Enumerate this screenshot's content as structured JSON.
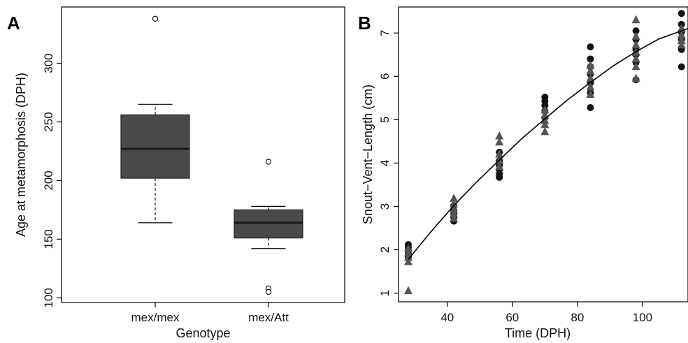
{
  "panels": {
    "a": {
      "letter": "A"
    },
    "b": {
      "letter": "B"
    }
  },
  "chart_data": [
    {
      "type": "box",
      "panel": "A",
      "xlabel": "Genotype",
      "ylabel": "Age at metamorphosis (DPH)",
      "categories": [
        "mex/mex",
        "mex/Att"
      ],
      "ylim": [
        96,
        348
      ],
      "yticks": [
        100,
        150,
        200,
        250,
        300
      ],
      "grid": false,
      "colors": {
        "box_fill": "#4a4a4a",
        "median": "#1a1a1a"
      },
      "boxes": [
        {
          "category": "mex/mex",
          "whisker_low": 164,
          "q1": 202,
          "median": 227,
          "q3": 256,
          "whisker_high": 265,
          "outliers": [
            338
          ]
        },
        {
          "category": "mex/Att",
          "whisker_low": 142,
          "q1": 151,
          "median": 164,
          "q3": 175,
          "whisker_high": 178,
          "outliers": [
            216,
            108,
            105
          ]
        }
      ]
    },
    {
      "type": "scatter",
      "panel": "B",
      "xlabel": "Time (DPH)",
      "ylabel": "Snout−Vent−Length (cm)",
      "xlim": [
        25,
        114
      ],
      "ylim": [
        0.8,
        7.6
      ],
      "xticks": [
        40,
        60,
        80,
        100
      ],
      "yticks": [
        1,
        2,
        3,
        4,
        5,
        6,
        7
      ],
      "grid": false,
      "colors": {
        "circle": "#111111",
        "triangle": "#555555",
        "curve": "#000000"
      },
      "series": [
        {
          "marker": "circle",
          "points": [
            [
              28,
              2.12
            ],
            [
              28,
              2.05
            ],
            [
              28,
              1.98
            ],
            [
              28,
              1.9
            ],
            [
              28,
              1.83
            ],
            [
              42,
              3.02
            ],
            [
              42,
              2.9
            ],
            [
              42,
              2.82
            ],
            [
              42,
              2.75
            ],
            [
              42,
              2.66
            ],
            [
              56,
              4.25
            ],
            [
              56,
              4.05
            ],
            [
              56,
              3.95
            ],
            [
              56,
              3.85
            ],
            [
              56,
              3.75
            ],
            [
              56,
              3.67
            ],
            [
              70,
              5.52
            ],
            [
              70,
              5.43
            ],
            [
              70,
              5.33
            ],
            [
              70,
              5.2
            ],
            [
              70,
              5.05
            ],
            [
              84,
              6.68
            ],
            [
              84,
              6.4
            ],
            [
              84,
              6.22
            ],
            [
              84,
              6.05
            ],
            [
              84,
              5.85
            ],
            [
              84,
              5.62
            ],
            [
              84,
              5.28
            ],
            [
              98,
              7.05
            ],
            [
              98,
              6.85
            ],
            [
              98,
              6.62
            ],
            [
              98,
              6.5
            ],
            [
              98,
              6.32
            ],
            [
              98,
              5.92
            ],
            [
              112,
              7.45
            ],
            [
              112,
              7.2
            ],
            [
              112,
              7.02
            ],
            [
              112,
              6.85
            ],
            [
              112,
              6.62
            ],
            [
              112,
              6.22
            ]
          ]
        },
        {
          "marker": "triangle",
          "points": [
            [
              28,
              2.02
            ],
            [
              28,
              1.92
            ],
            [
              28,
              1.82
            ],
            [
              28,
              1.72
            ],
            [
              28,
              1.05
            ],
            [
              42,
              3.18
            ],
            [
              42,
              3.05
            ],
            [
              42,
              2.92
            ],
            [
              42,
              2.82
            ],
            [
              42,
              2.72
            ],
            [
              56,
              4.62
            ],
            [
              56,
              4.48
            ],
            [
              56,
              4.2
            ],
            [
              56,
              4.05
            ],
            [
              56,
              3.92
            ],
            [
              70,
              5.22
            ],
            [
              70,
              5.1
            ],
            [
              70,
              4.98
            ],
            [
              70,
              4.88
            ],
            [
              70,
              4.72
            ],
            [
              84,
              6.25
            ],
            [
              84,
              6.12
            ],
            [
              84,
              5.95
            ],
            [
              84,
              5.75
            ],
            [
              84,
              5.58
            ],
            [
              98,
              7.3
            ],
            [
              98,
              6.92
            ],
            [
              98,
              6.72
            ],
            [
              98,
              6.55
            ],
            [
              98,
              6.4
            ],
            [
              98,
              6.22
            ],
            [
              98,
              5.95
            ],
            [
              112,
              7.1
            ],
            [
              112,
              6.95
            ],
            [
              112,
              6.82
            ],
            [
              112,
              6.72
            ]
          ]
        }
      ],
      "fit_curve": {
        "x": [
          28,
          35,
          42,
          49,
          56,
          63,
          70,
          77,
          84,
          91,
          98,
          105,
          112,
          114
        ],
        "y": [
          1.78,
          2.42,
          3.02,
          3.56,
          4.07,
          4.57,
          5.02,
          5.46,
          5.86,
          6.24,
          6.57,
          6.86,
          7.05,
          7.1
        ]
      }
    }
  ]
}
